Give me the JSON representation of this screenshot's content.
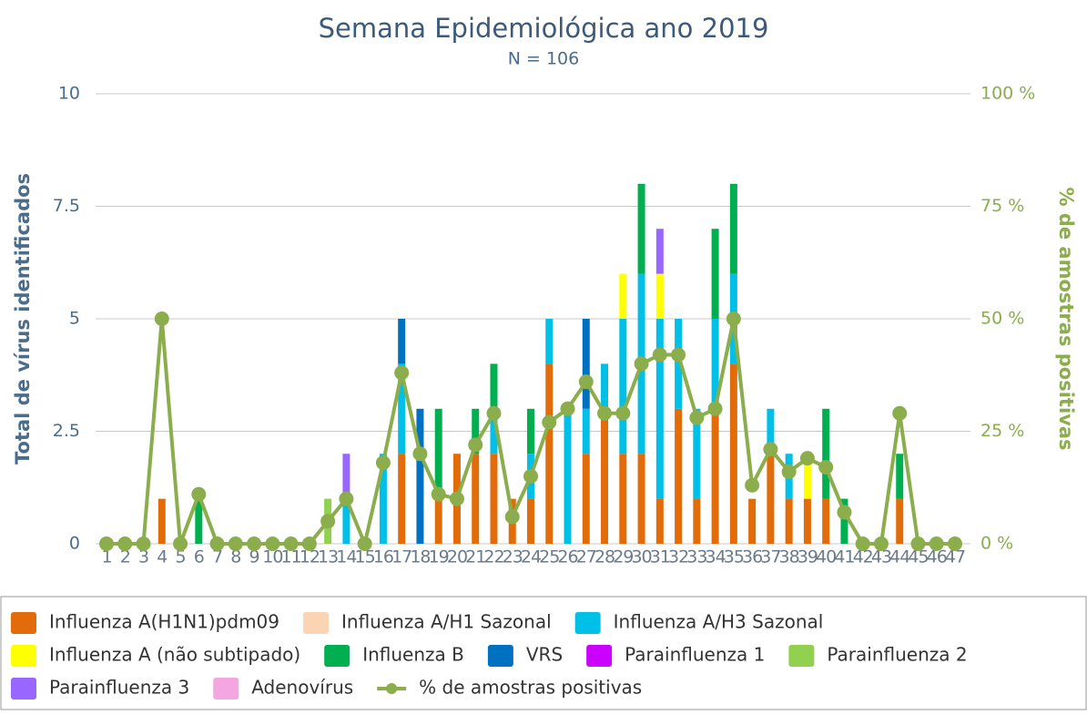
{
  "chart_data": {
    "type": "bar",
    "stacked": true,
    "title": "Semana Epidemiológica ano 2019",
    "subtitle": "N = 106",
    "y_label": "Total de vírus identificados",
    "y2_label": "% de amostras positivas",
    "categories": [
      "1",
      "2",
      "3",
      "4",
      "5",
      "6",
      "7",
      "8",
      "9",
      "10",
      "11",
      "12",
      "13",
      "14",
      "15",
      "16",
      "17",
      "18",
      "19",
      "20",
      "21",
      "22",
      "23",
      "24",
      "25",
      "26",
      "27",
      "28",
      "29",
      "30",
      "31",
      "32",
      "33",
      "34",
      "35",
      "36",
      "37",
      "38",
      "39",
      "40",
      "41",
      "42",
      "43",
      "44",
      "45",
      "46",
      "47"
    ],
    "ylim": [
      0,
      10
    ],
    "yticks": [
      0,
      2.5,
      5,
      7.5,
      10
    ],
    "y2lim": [
      0,
      100
    ],
    "y2ticks": [
      {
        "value": 0,
        "label": "0 %"
      },
      {
        "value": 25,
        "label": "25 %"
      },
      {
        "value": 50,
        "label": "50 %"
      },
      {
        "value": 75,
        "label": "75 %"
      },
      {
        "value": 100,
        "label": "100 %"
      }
    ],
    "grid": true,
    "legend": "bottom",
    "series": [
      {
        "name": "Influenza A(H1N1)pdm09",
        "color": "#e36c0a",
        "values": [
          0,
          0,
          0,
          1,
          0,
          0,
          0,
          0,
          0,
          0,
          0,
          0,
          0,
          0,
          0,
          0,
          2,
          0,
          1,
          2,
          2,
          2,
          1,
          1,
          4,
          0,
          2,
          3,
          2,
          2,
          1,
          3,
          1,
          3,
          4,
          1,
          2,
          1,
          1,
          1,
          0,
          0,
          0,
          1,
          0,
          0,
          0
        ]
      },
      {
        "name": "Influenza A/H1 Sazonal",
        "color": "#fbd4b4",
        "values": [
          0,
          0,
          0,
          0,
          0,
          0,
          0,
          0,
          0,
          0,
          0,
          0,
          0,
          0,
          0,
          0,
          0,
          0,
          0,
          0,
          0,
          0,
          0,
          0,
          0,
          0,
          0,
          0,
          0,
          0,
          0,
          0,
          0,
          0,
          0,
          0,
          0,
          0,
          0,
          0,
          0,
          0,
          0,
          0,
          0,
          0,
          0
        ]
      },
      {
        "name": "Influenza A/H3 Sazonal",
        "color": "#00c0e8",
        "values": [
          0,
          0,
          0,
          0,
          0,
          0,
          0,
          0,
          0,
          0,
          0,
          0,
          0,
          1,
          0,
          2,
          2,
          0,
          0,
          0,
          0,
          1,
          0,
          1,
          1,
          3,
          1,
          1,
          3,
          4,
          4,
          2,
          2,
          2,
          2,
          0,
          1,
          1,
          0,
          0,
          0,
          0,
          0,
          0,
          0,
          0,
          0
        ]
      },
      {
        "name": "Influenza A (não subtipado)",
        "color": "#ffff00",
        "values": [
          0,
          0,
          0,
          0,
          0,
          0,
          0,
          0,
          0,
          0,
          0,
          0,
          0,
          0,
          0,
          0,
          0,
          0,
          0,
          0,
          0,
          0,
          0,
          0,
          0,
          0,
          0,
          0,
          1,
          0,
          1,
          0,
          0,
          0,
          0,
          0,
          0,
          0,
          1,
          0,
          0,
          0,
          0,
          0,
          0,
          0,
          0
        ]
      },
      {
        "name": "Influenza B",
        "color": "#00b050",
        "values": [
          0,
          0,
          0,
          0,
          0,
          1,
          0,
          0,
          0,
          0,
          0,
          0,
          0,
          0,
          0,
          0,
          0,
          0,
          2,
          0,
          1,
          1,
          0,
          1,
          0,
          0,
          0,
          0,
          0,
          2,
          0,
          0,
          0,
          2,
          2,
          0,
          0,
          0,
          0,
          2,
          1,
          0,
          0,
          1,
          0,
          0,
          0
        ]
      },
      {
        "name": "VRS",
        "color": "#0070c0",
        "values": [
          0,
          0,
          0,
          0,
          0,
          0,
          0,
          0,
          0,
          0,
          0,
          0,
          0,
          0,
          0,
          0,
          1,
          3,
          0,
          0,
          0,
          0,
          0,
          0,
          0,
          0,
          2,
          0,
          0,
          0,
          0,
          0,
          0,
          0,
          0,
          0,
          0,
          0,
          0,
          0,
          0,
          0,
          0,
          0,
          0,
          0,
          0
        ]
      },
      {
        "name": "Parainfluenza 1",
        "color": "#cc00ff",
        "values": [
          0,
          0,
          0,
          0,
          0,
          0,
          0,
          0,
          0,
          0,
          0,
          0,
          0,
          0,
          0,
          0,
          0,
          0,
          0,
          0,
          0,
          0,
          0,
          0,
          0,
          0,
          0,
          0,
          0,
          0,
          0,
          0,
          0,
          0,
          0,
          0,
          0,
          0,
          0,
          0,
          0,
          0,
          0,
          0,
          0,
          0,
          0
        ]
      },
      {
        "name": "Parainfluenza 2",
        "color": "#92d050",
        "values": [
          0,
          0,
          0,
          0,
          0,
          0,
          0,
          0,
          0,
          0,
          0,
          0,
          1,
          0,
          0,
          0,
          0,
          0,
          0,
          0,
          0,
          0,
          0,
          0,
          0,
          0,
          0,
          0,
          0,
          0,
          0,
          0,
          0,
          0,
          0,
          0,
          0,
          0,
          0,
          0,
          0,
          0,
          0,
          0,
          0,
          0,
          0
        ]
      },
      {
        "name": "Parainfluenza 3",
        "color": "#9966ff",
        "values": [
          0,
          0,
          0,
          0,
          0,
          0,
          0,
          0,
          0,
          0,
          0,
          0,
          0,
          1,
          0,
          0,
          0,
          0,
          0,
          0,
          0,
          0,
          0,
          0,
          0,
          0,
          0,
          0,
          0,
          0,
          1,
          0,
          0,
          0,
          0,
          0,
          0,
          0,
          0,
          0,
          0,
          0,
          0,
          0,
          0,
          0,
          0
        ]
      },
      {
        "name": "Adenovírus",
        "color": "#f4a6e0",
        "values": [
          0,
          0,
          0,
          0,
          0,
          0,
          0,
          0,
          0,
          0,
          0,
          0,
          0,
          0,
          0,
          0,
          0,
          0,
          0,
          0,
          0,
          0,
          0,
          0,
          0,
          0,
          0,
          0,
          0,
          0,
          0,
          0,
          0,
          0,
          0,
          0,
          0,
          0,
          0,
          0,
          0,
          0,
          0,
          0,
          0,
          0,
          0
        ]
      },
      {
        "name": "% de amostras positivas",
        "color": "#8bad4c",
        "type": "line",
        "axis": "y2",
        "values": [
          0,
          0,
          0,
          50,
          0,
          11,
          0,
          0,
          0,
          0,
          0,
          0,
          5,
          10,
          0,
          18,
          38,
          20,
          11,
          10,
          22,
          29,
          6,
          15,
          27,
          30,
          36,
          29,
          29,
          40,
          42,
          42,
          28,
          30,
          50,
          13,
          21,
          16,
          19,
          17,
          7,
          0,
          0,
          29,
          0,
          0,
          0
        ]
      }
    ]
  }
}
